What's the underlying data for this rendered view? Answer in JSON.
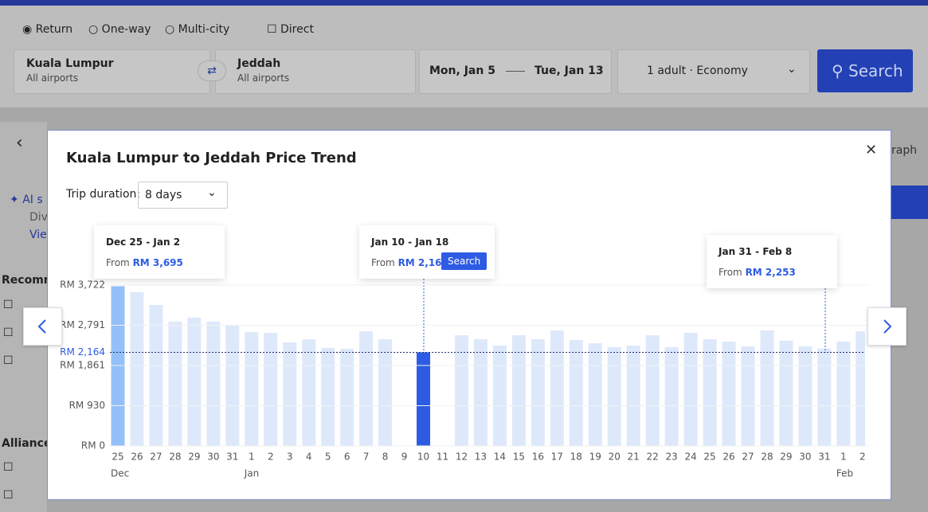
{
  "search_form": {
    "trip_types": [
      "Return",
      "One-way",
      "Multi-city"
    ],
    "direct": "Direct",
    "origin": {
      "city": "Kuala Lumpur",
      "airports": "All airports"
    },
    "destination": {
      "city": "Jeddah",
      "airports": "All airports"
    },
    "depart": "Mon, Jan 5",
    "return": "Tue, Jan 13",
    "passengers": "1 adult · Economy",
    "search_button": "Search"
  },
  "sidebar": {
    "ai_title": "AI s",
    "ai_text": "Dive",
    "ai_link": "View",
    "recommended": "Recomme",
    "alliance": "Alliance",
    "graph_tab": "raph"
  },
  "modal": {
    "title": "Kuala Lumpur to Jeddah Price Trend",
    "trip_duration_label": "Trip duration:",
    "trip_duration": "8 days",
    "callouts": [
      {
        "dates": "Dec 25 - Jan 2",
        "from": "From",
        "price": "RM 3,695"
      },
      {
        "dates": "Jan 10 - Jan 18",
        "from": "From",
        "price": "RM 2,164",
        "button": "Search"
      },
      {
        "dates": "Jan 31 - Feb 8",
        "from": "From",
        "price": "RM 2,253"
      }
    ]
  },
  "chart_data": {
    "type": "bar",
    "categories": [
      "25",
      "26",
      "27",
      "28",
      "29",
      "30",
      "31",
      "1",
      "2",
      "3",
      "4",
      "5",
      "6",
      "7",
      "8",
      "9",
      "10",
      "11",
      "12",
      "13",
      "14",
      "15",
      "16",
      "17",
      "18",
      "19",
      "20",
      "21",
      "22",
      "23",
      "24",
      "25",
      "26",
      "27",
      "28",
      "29",
      "30",
      "31",
      "1",
      "2"
    ],
    "months": [
      "Dec",
      null,
      null,
      null,
      null,
      null,
      null,
      "Jan",
      null,
      null,
      null,
      null,
      null,
      null,
      null,
      null,
      null,
      null,
      null,
      null,
      null,
      null,
      null,
      null,
      null,
      null,
      null,
      null,
      null,
      null,
      null,
      null,
      null,
      null,
      null,
      null,
      null,
      null,
      "Feb",
      null
    ],
    "values": [
      3695,
      3557,
      3262,
      2875,
      2967,
      2875,
      2801,
      2636,
      2617,
      2396,
      2470,
      2267,
      2248,
      2654,
      2470,
      null,
      2164,
      null,
      2562,
      2470,
      2322,
      2562,
      2470,
      2672,
      2451,
      2377,
      2285,
      2322,
      2562,
      2285,
      2617,
      2470,
      2414,
      2304,
      2672,
      2433,
      2304,
      2253,
      2414,
      2654
    ],
    "colors": [
      "#93c0f8",
      "#dde9fb",
      "#dde9fb",
      "#dde9fb",
      "#dde9fb",
      "#dde9fb",
      "#dde9fb",
      "#dde9fb",
      "#dde9fb",
      "#dde9fb",
      "#dde9fb",
      "#dde9fb",
      "#dde9fb",
      "#dde9fb",
      "#dde9fb",
      "#dde9fb",
      "#2d5be3",
      "#dde9fb",
      "#dde9fb",
      "#dde9fb",
      "#dde9fb",
      "#dde9fb",
      "#dde9fb",
      "#dde9fb",
      "#dde9fb",
      "#dde9fb",
      "#dde9fb",
      "#dde9fb",
      "#dde9fb",
      "#dde9fb",
      "#dde9fb",
      "#dde9fb",
      "#dde9fb",
      "#dde9fb",
      "#dde9fb",
      "#dde9fb",
      "#dde9fb",
      "#dde9fb",
      "#dde9fb",
      "#dde9fb"
    ],
    "ylim": [
      0,
      3722
    ],
    "yticks": [
      {
        "value": 0,
        "label": "RM 0"
      },
      {
        "value": 930,
        "label": "RM 930"
      },
      {
        "value": 1861,
        "label": "RM 1,861"
      },
      {
        "value": 2791,
        "label": "RM 2,791"
      },
      {
        "value": 3722,
        "label": "RM 3,722"
      }
    ],
    "grid": true,
    "reference_line": {
      "value": 2164,
      "label": "RM 2,164",
      "color": "#2d5be3"
    }
  }
}
